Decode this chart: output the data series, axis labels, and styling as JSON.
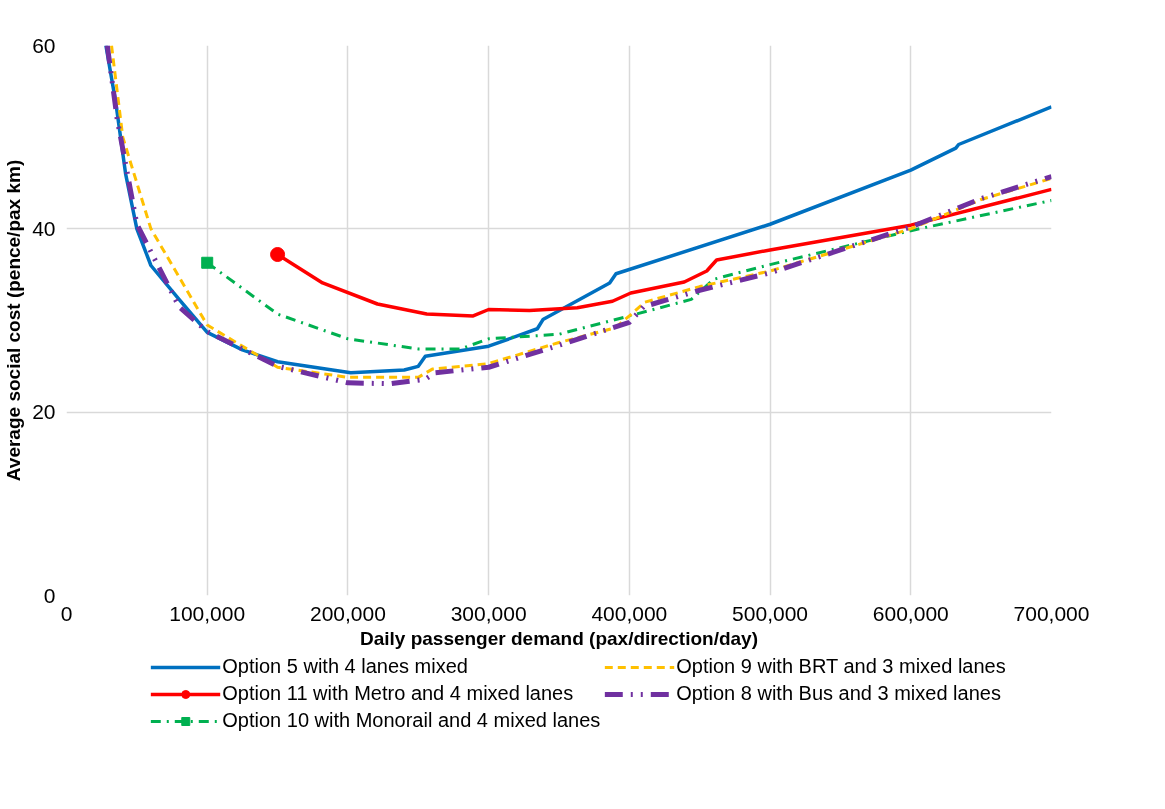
{
  "chart_data": {
    "type": "line",
    "xlabel": "Daily passenger demand (pax/direction/day)",
    "ylabel": "Average social cost (pence/pax km)",
    "xlim": [
      0,
      700000
    ],
    "ylim": [
      0,
      60
    ],
    "xticks": [
      {
        "value": 0,
        "label": "0"
      },
      {
        "value": 100000,
        "label": "100,000"
      },
      {
        "value": 200000,
        "label": "200,000"
      },
      {
        "value": 300000,
        "label": "300,000"
      },
      {
        "value": 400000,
        "label": "400,000"
      },
      {
        "value": 500000,
        "label": "500,000"
      },
      {
        "value": 600000,
        "label": "600,000"
      },
      {
        "value": 700000,
        "label": "700,000"
      }
    ],
    "yticks": [
      0,
      20,
      40,
      60
    ],
    "grid": true,
    "legend": "bottom",
    "series": [
      {
        "name": "Option 5 with 4 lanes mixed",
        "color": "#0070c0",
        "line_style": "solid",
        "marker": "none",
        "x": [
          28000,
          35000,
          42000,
          50000,
          60000,
          80000,
          100000,
          125000,
          150000,
          202000,
          240000,
          250000,
          255000,
          300000,
          334600,
          338600,
          386000,
          390500,
          500000,
          600000,
          632000,
          634000,
          700000
        ],
        "values": [
          60,
          53.8,
          46,
          40,
          36,
          32.3,
          28.7,
          26.8,
          25.5,
          24.3,
          24.6,
          25.0,
          26.1,
          27.2,
          29.1,
          30.1,
          34.1,
          35.1,
          40.5,
          46.4,
          48.8,
          49.2,
          53.3
        ]
      },
      {
        "name": "Option 11 with Metro and 4 mixed lanes",
        "color": "#ff0000",
        "line_style": "solid",
        "marker": "none",
        "x": [
          150000,
          182000,
          221000,
          256000,
          289000,
          300000,
          329000,
          363000,
          388000,
          401000,
          439000,
          455000,
          462000,
          500000,
          600000,
          700000
        ],
        "values": [
          37.2,
          34.1,
          31.8,
          30.7,
          30.5,
          31.2,
          31.1,
          31.4,
          32.1,
          33.0,
          34.2,
          35.4,
          36.6,
          37.7,
          40.4,
          44.3
        ]
      },
      {
        "name": "Option 10 with Monorail and 4 mixed lanes",
        "color": "#00b050",
        "line_style": "dashdot",
        "marker": "none",
        "x": [
          100000,
          150000,
          200000,
          250000,
          280000,
          300000,
          350000,
          400000,
          444000,
          460000,
          500000,
          600000,
          700000
        ],
        "values": [
          36.3,
          30.7,
          28.0,
          26.9,
          26.9,
          28.0,
          28.5,
          30.5,
          32.3,
          34.5,
          36.1,
          39.8,
          43.1
        ]
      },
      {
        "name": "Option 9 with BRT and 3 mixed lanes",
        "color": "#ffc000",
        "line_style": "dashed",
        "marker": "none",
        "x": [
          32000,
          40000,
          60000,
          100000,
          150000,
          200000,
          250000,
          260000,
          300000,
          350000,
          390000,
          400000,
          411000,
          450000,
          500000,
          600000,
          650000,
          700000
        ],
        "values": [
          60,
          50,
          40,
          29.5,
          24.9,
          23.8,
          23.8,
          24.7,
          25.3,
          27.6,
          29.2,
          30.5,
          32,
          33.7,
          35.4,
          40.0,
          43.2,
          45.5
        ]
      },
      {
        "name": "Option 8 with Bus and 3 mixed lanes",
        "color": "#7030a0",
        "line_style": "dashdotdot",
        "marker": "none",
        "x": [
          29000,
          36000,
          50000,
          80000,
          100000,
          150000,
          200000,
          230000,
          255000,
          262000,
          300000,
          350000,
          400000,
          410000,
          450000,
          500000,
          600000,
          650000,
          700000
        ],
        "values": [
          60,
          52,
          40.5,
          31.5,
          28.8,
          25.0,
          23.2,
          23.1,
          23.6,
          24.3,
          24.9,
          27.3,
          29.8,
          31.5,
          33.3,
          35.2,
          40.2,
          43.3,
          45.7
        ]
      },
      {
        "type": "scatter",
        "marker": "circle",
        "color": "#ff0000",
        "x": [
          150000
        ],
        "values": [
          37.2
        ]
      },
      {
        "type": "scatter",
        "marker": "square",
        "color": "#00b050",
        "x": [
          100000
        ],
        "values": [
          36.3
        ]
      }
    ]
  }
}
